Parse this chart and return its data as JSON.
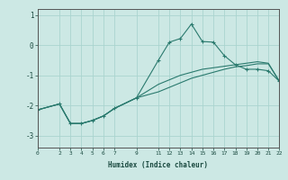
{
  "xlabel": "Humidex (Indice chaleur)",
  "background_color": "#cce8e4",
  "grid_color": "#aad4cf",
  "line_color": "#2a7a6e",
  "xlim": [
    0,
    22
  ],
  "ylim": [
    -3.4,
    1.2
  ],
  "yticks": [
    1,
    0,
    -1,
    -2,
    -3
  ],
  "xticks": [
    0,
    2,
    3,
    4,
    5,
    6,
    7,
    9,
    11,
    12,
    13,
    14,
    15,
    16,
    17,
    18,
    19,
    20,
    21,
    22
  ],
  "line1_x": [
    0,
    2,
    3,
    4,
    5,
    6,
    7,
    9,
    11,
    12,
    13,
    14,
    15,
    16,
    17,
    18,
    19,
    20,
    21,
    22
  ],
  "line1_y": [
    -2.15,
    -1.95,
    -2.6,
    -2.6,
    -2.5,
    -2.35,
    -2.1,
    -1.75,
    -0.5,
    0.1,
    0.22,
    0.7,
    0.12,
    0.1,
    -0.35,
    -0.65,
    -0.8,
    -0.8,
    -0.85,
    -1.2
  ],
  "line2_x": [
    0,
    2,
    3,
    4,
    5,
    6,
    7,
    9,
    11,
    12,
    13,
    14,
    15,
    16,
    17,
    18,
    19,
    20,
    21,
    22
  ],
  "line2_y": [
    -2.15,
    -1.95,
    -2.6,
    -2.6,
    -2.5,
    -2.35,
    -2.1,
    -1.75,
    -1.3,
    -1.15,
    -1.0,
    -0.9,
    -0.8,
    -0.75,
    -0.7,
    -0.65,
    -0.6,
    -0.55,
    -0.6,
    -1.2
  ],
  "line3_x": [
    0,
    2,
    3,
    4,
    5,
    6,
    7,
    9,
    11,
    12,
    13,
    14,
    15,
    16,
    17,
    18,
    19,
    20,
    21,
    22
  ],
  "line3_y": [
    -2.15,
    -1.95,
    -2.6,
    -2.6,
    -2.5,
    -2.35,
    -2.1,
    -1.75,
    -1.55,
    -1.4,
    -1.25,
    -1.1,
    -1.0,
    -0.9,
    -0.8,
    -0.72,
    -0.68,
    -0.62,
    -0.62,
    -1.2
  ]
}
